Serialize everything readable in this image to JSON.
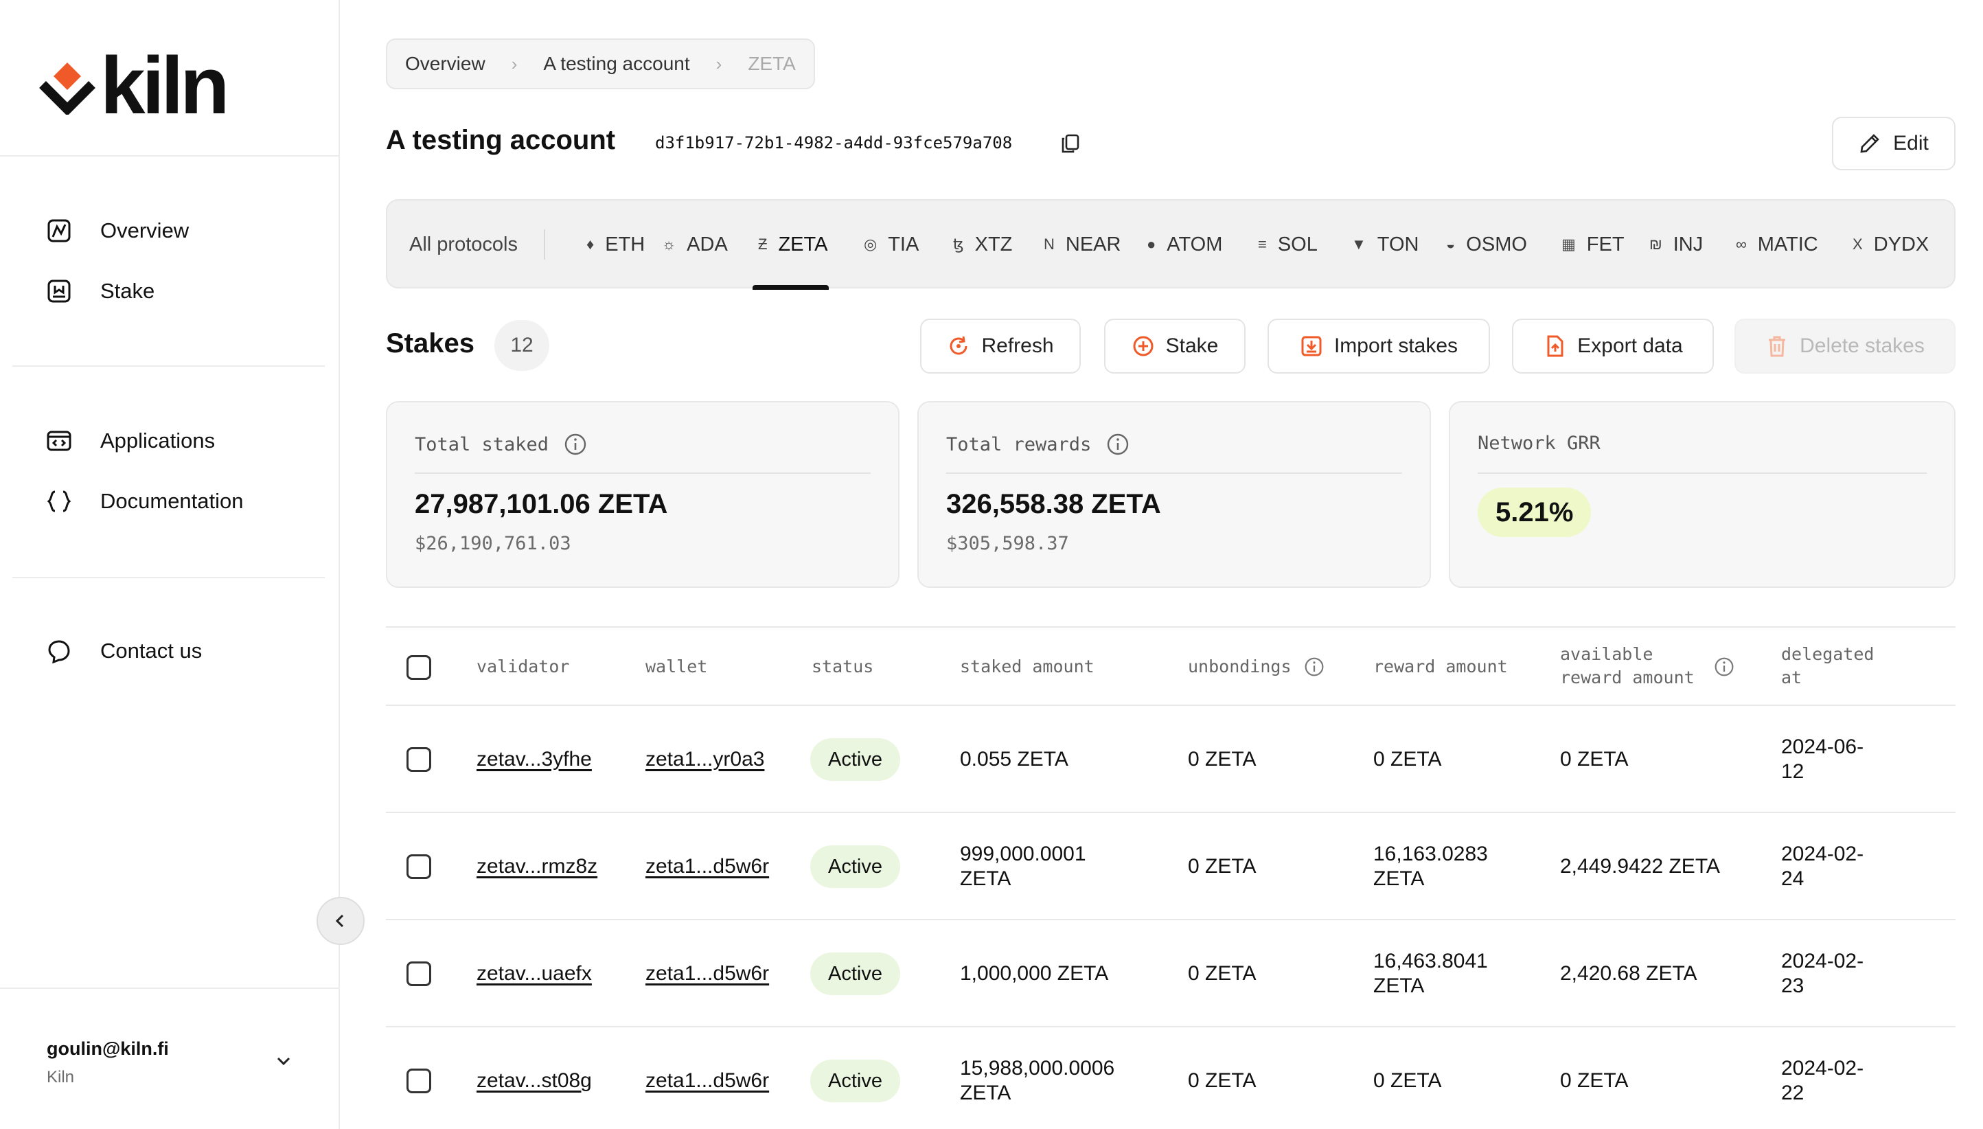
{
  "brand": {
    "name": "kiln",
    "accent": "#f05a28"
  },
  "sidebar": {
    "nav": [
      {
        "label": "Overview",
        "icon": "overview-icon"
      },
      {
        "label": "Stake",
        "icon": "stake-icon"
      }
    ],
    "nav2": [
      {
        "label": "Applications",
        "icon": "applications-icon"
      },
      {
        "label": "Documentation",
        "icon": "braces-icon"
      }
    ],
    "nav3": [
      {
        "label": "Contact us",
        "icon": "chat-bubble-icon"
      }
    ],
    "user": {
      "email": "goulin@kiln.fi",
      "org": "Kiln"
    }
  },
  "breadcrumb": [
    "Overview",
    "A testing account",
    "ZETA"
  ],
  "account": {
    "title": "A testing account",
    "id": "d3f1b917-72b1-4982-a4dd-93fce579a708",
    "edit_label": "Edit"
  },
  "protocols": {
    "all_label": "All protocols",
    "active": "ZETA",
    "items": [
      {
        "label": "ETH",
        "glyph": "♦"
      },
      {
        "label": "ADA",
        "glyph": "☼"
      },
      {
        "label": "ZETA",
        "glyph": "Ƶ"
      },
      {
        "label": "TIA",
        "glyph": "◎"
      },
      {
        "label": "XTZ",
        "glyph": "ꜩ"
      },
      {
        "label": "NEAR",
        "glyph": "N"
      },
      {
        "label": "ATOM",
        "glyph": "●"
      },
      {
        "label": "SOL",
        "glyph": "≡"
      },
      {
        "label": "TON",
        "glyph": "▼"
      },
      {
        "label": "OSMO",
        "glyph": "◒"
      },
      {
        "label": "FET",
        "glyph": "▦"
      },
      {
        "label": "INJ",
        "glyph": "₪"
      },
      {
        "label": "MATIC",
        "glyph": "∞"
      },
      {
        "label": "DYDX",
        "glyph": "X"
      }
    ]
  },
  "stakes": {
    "title": "Stakes",
    "count": "12",
    "actions": {
      "refresh": "Refresh",
      "stake": "Stake",
      "import": "Import stakes",
      "export": "Export data",
      "delete": "Delete stakes"
    }
  },
  "stats": {
    "total_staked": {
      "label": "Total staked",
      "value": "27,987,101.06 ZETA",
      "usd": "$26,190,761.03"
    },
    "total_rewards": {
      "label": "Total rewards",
      "value": "326,558.38 ZETA",
      "usd": "$305,598.37"
    },
    "network_grr": {
      "label": "Network GRR",
      "value": "5.21%"
    }
  },
  "table": {
    "headers": {
      "validator": "validator",
      "wallet": "wallet",
      "status": "status",
      "staked": "staked amount",
      "unbondings": "unbondings",
      "reward": "reward amount",
      "available1": "available",
      "available2": "reward amount",
      "delegated1": "delegated",
      "delegated2": "at"
    },
    "rows": [
      {
        "validator": "zetav...3yfhe",
        "wallet": "zeta1...yr0a3",
        "status": "Active",
        "staked1": "0.055 ZETA",
        "staked2": "",
        "unbondings": "0 ZETA",
        "reward1": "0 ZETA",
        "reward2": "",
        "available": "0 ZETA",
        "date1": "2024-06-",
        "date2": "12"
      },
      {
        "validator": "zetav...rmz8z",
        "wallet": "zeta1...d5w6r",
        "status": "Active",
        "staked1": "999,000.0001",
        "staked2": "ZETA",
        "unbondings": "0 ZETA",
        "reward1": "16,163.0283",
        "reward2": "ZETA",
        "available": "2,449.9422 ZETA",
        "date1": "2024-02-",
        "date2": "24"
      },
      {
        "validator": "zetav...uaefx",
        "wallet": "zeta1...d5w6r",
        "status": "Active",
        "staked1": "1,000,000 ZETA",
        "staked2": "",
        "unbondings": "0 ZETA",
        "reward1": "16,463.8041",
        "reward2": "ZETA",
        "available": "2,420.68 ZETA",
        "date1": "2024-02-",
        "date2": "23"
      },
      {
        "validator": "zetav...st08g",
        "wallet": "zeta1...d5w6r",
        "status": "Active",
        "staked1": "15,988,000.0006",
        "staked2": "ZETA",
        "unbondings": "0 ZETA",
        "reward1": "0 ZETA",
        "reward2": "",
        "available": "0 ZETA",
        "date1": "2024-02-",
        "date2": "22"
      }
    ]
  }
}
